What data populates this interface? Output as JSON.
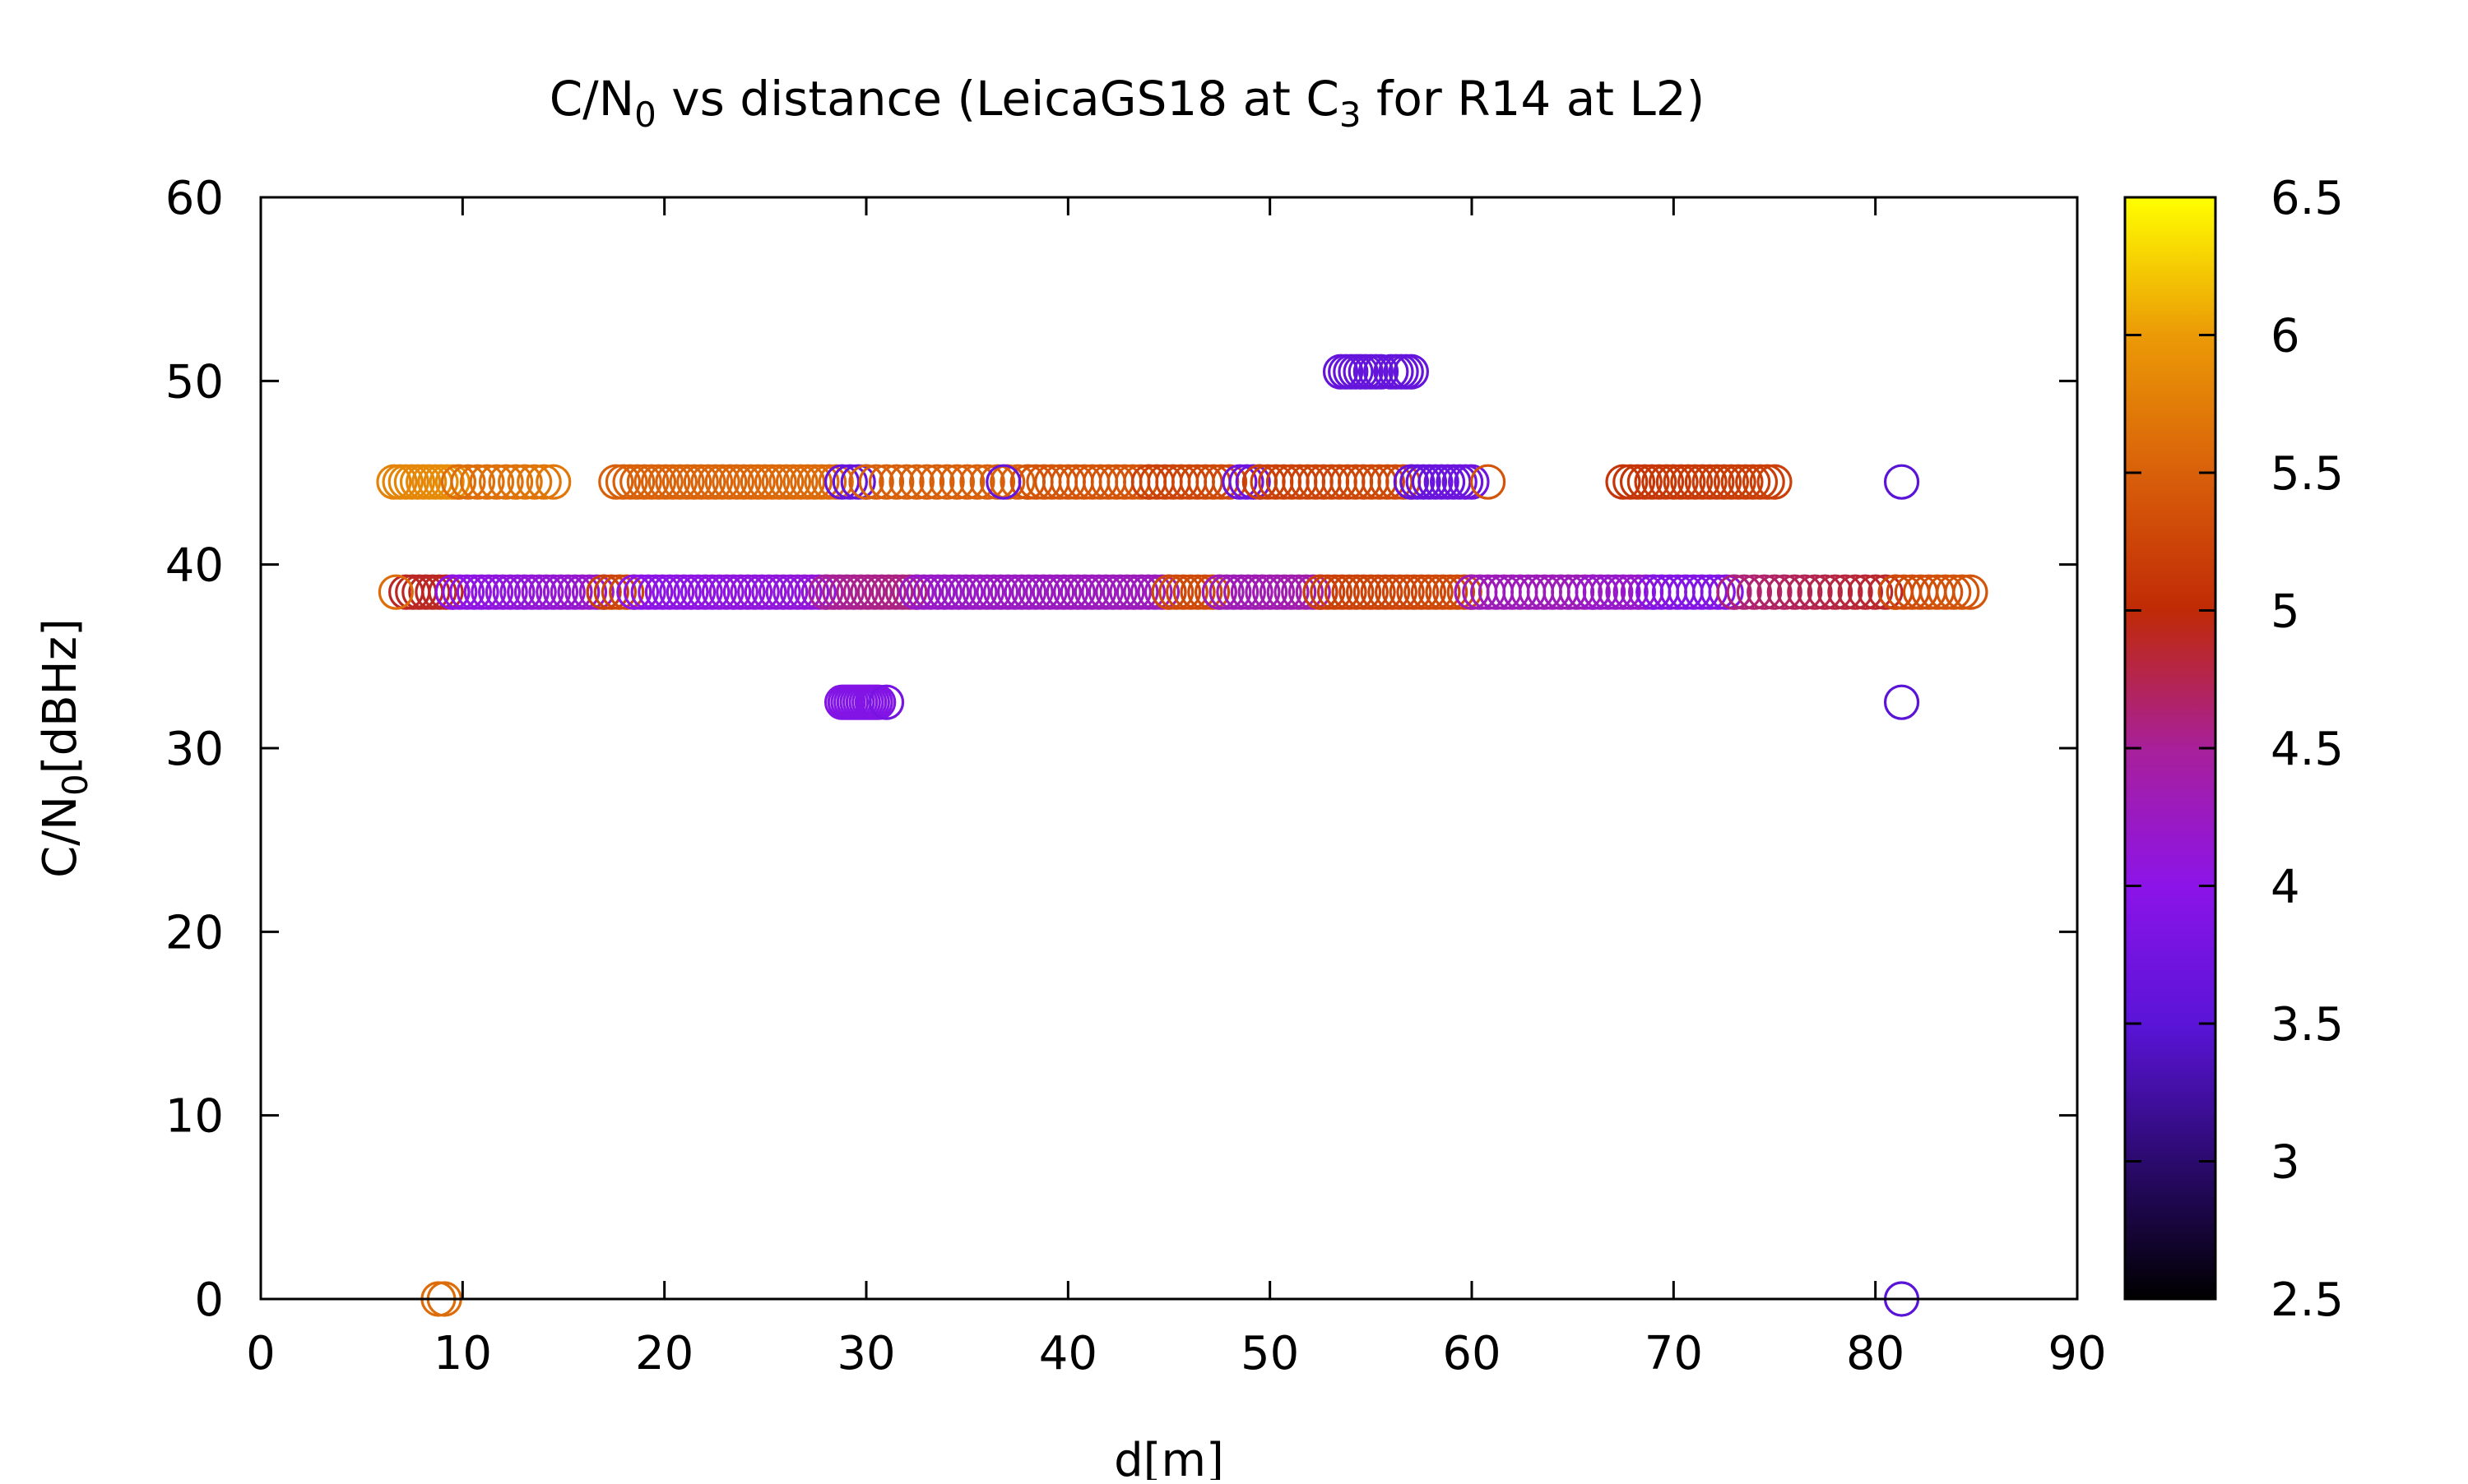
{
  "chart_data": {
    "type": "scatter",
    "title": {
      "pre": "C/N",
      "sub1": "0",
      "mid": " vs distance (LeicaGS18 at C",
      "sub2": "3",
      "post": " for R14 at L2)"
    },
    "xlabel": "d[m]",
    "ylabel": {
      "pre": "C/N",
      "sub": "0",
      "post": "[dBHz]"
    },
    "xlim": [
      0,
      90
    ],
    "ylim": [
      0,
      60
    ],
    "xticks": [
      "0",
      "10",
      "20",
      "30",
      "40",
      "50",
      "60",
      "70",
      "80",
      "90"
    ],
    "yticks": [
      "0",
      "10",
      "20",
      "30",
      "40",
      "50",
      "60"
    ],
    "colorbar": {
      "range": [
        2.5,
        6.5
      ],
      "ticks": [
        "2.5",
        "3",
        "3.5",
        "4",
        "4.5",
        "5",
        "5.5",
        "6",
        "6.5"
      ],
      "palette": [
        "#000000",
        "#2b0a6e",
        "#5a14d8",
        "#8c14e8",
        "#a8209a",
        "#c02a06",
        "#d9600a",
        "#eb9a06",
        "#ffff00"
      ]
    },
    "marker": "open-circle",
    "grid": false,
    "clusters": [
      {
        "y": 38.5,
        "x_from": 7.2,
        "x_to": 9.5,
        "step": 0.35,
        "c_from": 4.9,
        "c_to": 4.9
      },
      {
        "y": 38.5,
        "x_from": 9.5,
        "x_to": 17.0,
        "step": 0.35,
        "c_from": 4.0,
        "c_to": 4.2
      },
      {
        "y": 38.5,
        "x_from": 17.0,
        "x_to": 18.5,
        "step": 0.35,
        "c_from": 5.2,
        "c_to": 5.3
      },
      {
        "y": 38.5,
        "x_from": 18.5,
        "x_to": 28.0,
        "step": 0.35,
        "c_from": 4.0,
        "c_to": 4.1
      },
      {
        "y": 38.5,
        "x_from": 28.0,
        "x_to": 32.5,
        "step": 0.35,
        "c_from": 4.5,
        "c_to": 4.6
      },
      {
        "y": 38.5,
        "x_from": 32.5,
        "x_to": 45.0,
        "step": 0.35,
        "c_from": 4.2,
        "c_to": 4.3
      },
      {
        "y": 38.5,
        "x_from": 45.0,
        "x_to": 47.5,
        "step": 0.35,
        "c_from": 5.3,
        "c_to": 5.3
      },
      {
        "y": 38.5,
        "x_from": 47.5,
        "x_to": 52.5,
        "step": 0.35,
        "c_from": 4.3,
        "c_to": 4.4
      },
      {
        "y": 38.5,
        "x_from": 52.5,
        "x_to": 60.0,
        "step": 0.35,
        "c_from": 5.2,
        "c_to": 5.3
      },
      {
        "y": 38.5,
        "x_from": 60.0,
        "x_to": 66.0,
        "step": 0.4,
        "c_from": 4.3,
        "c_to": 4.3
      },
      {
        "y": 38.5,
        "x_from": 66.0,
        "x_to": 69.0,
        "step": 0.4,
        "c_from": 4.2,
        "c_to": 4.2
      },
      {
        "y": 38.5,
        "x_from": 69.0,
        "x_to": 73.0,
        "step": 0.4,
        "c_from": 3.9,
        "c_to": 3.9
      },
      {
        "y": 38.5,
        "x_from": 73.0,
        "x_to": 81.0,
        "step": 0.5,
        "c_from": 4.6,
        "c_to": 4.9
      },
      {
        "y": 38.5,
        "x_from": 81.0,
        "x_to": 84.7,
        "step": 0.4,
        "c_from": 5.3,
        "c_to": 5.4
      },
      {
        "y": 44.5,
        "x_from": 6.6,
        "x_to": 9.8,
        "step": 0.3,
        "c_from": 5.8,
        "c_to": 5.9
      },
      {
        "y": 44.5,
        "x_from": 9.8,
        "x_to": 14.5,
        "step": 0.45,
        "c_from": 5.6,
        "c_to": 5.7
      },
      {
        "y": 44.5,
        "x_from": 17.6,
        "x_to": 28.5,
        "step": 0.35,
        "c_from": 5.5,
        "c_to": 5.6
      },
      {
        "y": 44.5,
        "x_from": 28.8,
        "x_to": 30.0,
        "step": 0.35,
        "c_from": 3.6,
        "c_to": 3.6
      },
      {
        "y": 44.5,
        "x_from": 30.0,
        "x_to": 38.0,
        "step": 0.5,
        "c_from": 5.5,
        "c_to": 5.5
      },
      {
        "y": 44.5,
        "x_from": 38.0,
        "x_to": 44.0,
        "step": 0.4,
        "c_from": 5.4,
        "c_to": 5.4
      },
      {
        "y": 44.5,
        "x_from": 44.0,
        "x_to": 48.0,
        "step": 0.4,
        "c_from": 5.2,
        "c_to": 5.3
      },
      {
        "y": 44.5,
        "x_from": 48.5,
        "x_to": 49.5,
        "step": 0.35,
        "c_from": 3.7,
        "c_to": 3.7
      },
      {
        "y": 44.5,
        "x_from": 49.5,
        "x_to": 57.0,
        "step": 0.4,
        "c_from": 5.2,
        "c_to": 5.3
      },
      {
        "y": 44.5,
        "x_from": 57.0,
        "x_to": 60.0,
        "step": 0.3,
        "c_from": 3.6,
        "c_to": 3.7
      },
      {
        "y": 44.5,
        "x_from": 67.5,
        "x_to": 75.0,
        "step": 0.35,
        "c_from": 5.1,
        "c_to": 5.2
      },
      {
        "y": 50.5,
        "x_from": 53.5,
        "x_to": 55.5,
        "step": 0.25,
        "c_from": 3.6,
        "c_to": 3.6
      },
      {
        "y": 50.5,
        "x_from": 56.0,
        "x_to": 57.0,
        "step": 0.25,
        "c_from": 3.6,
        "c_to": 3.6
      },
      {
        "y": 32.5,
        "x_from": 28.8,
        "x_to": 30.6,
        "step": 0.15,
        "c_from": 3.9,
        "c_to": 3.9
      }
    ],
    "points": [
      {
        "x": 6.7,
        "y": 38.5,
        "c": 5.6
      },
      {
        "x": 31.0,
        "y": 32.5,
        "c": 3.8
      },
      {
        "x": 36.8,
        "y": 44.5,
        "c": 3.6
      },
      {
        "x": 60.8,
        "y": 44.5,
        "c": 5.4
      },
      {
        "x": 81.3,
        "y": 44.5,
        "c": 3.5
      },
      {
        "x": 81.3,
        "y": 32.5,
        "c": 3.5
      },
      {
        "x": 81.3,
        "y": 0.0,
        "c": 3.5
      },
      {
        "x": 8.8,
        "y": 0.0,
        "c": 5.6
      },
      {
        "x": 9.1,
        "y": 0.0,
        "c": 5.6
      }
    ]
  }
}
